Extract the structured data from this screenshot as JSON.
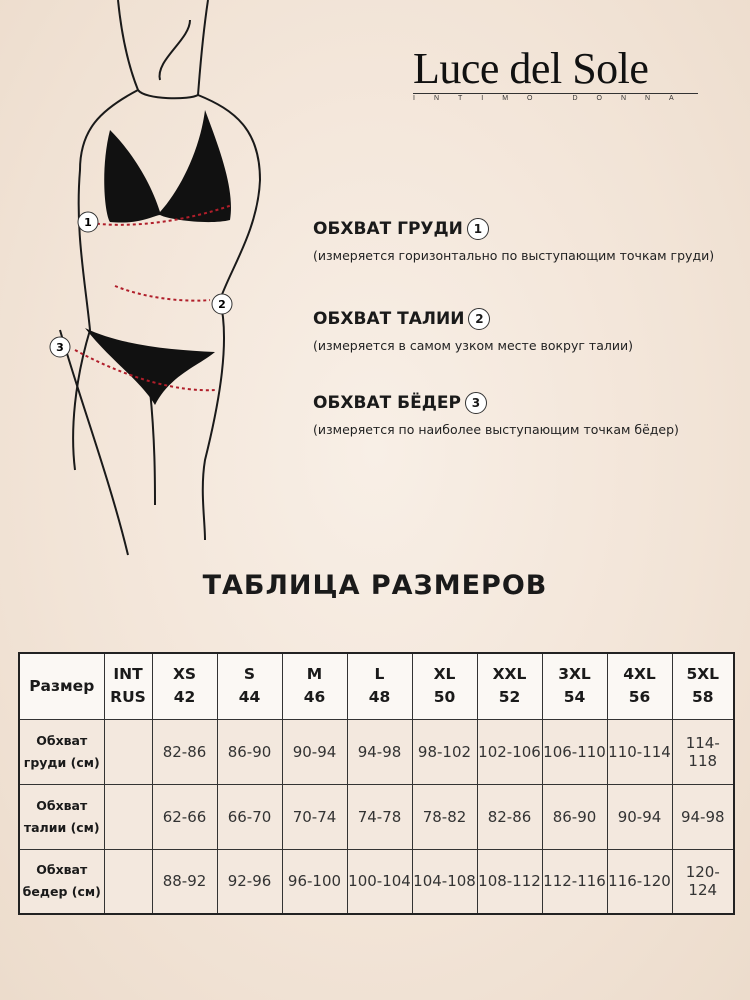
{
  "brand": {
    "name": "Luce del Sole",
    "tagline": "INTIMO DONNA"
  },
  "measurements": [
    {
      "num": "1",
      "title": "ОБХВАТ ГРУДИ",
      "desc": "(измеряется горизонтально по выступающим точкам груди)"
    },
    {
      "num": "2",
      "title": "ОБХВАТ ТАЛИИ",
      "desc": "(измеряется в самом узком месте вокруг талии)"
    },
    {
      "num": "3",
      "title": "ОБХВАТ БЁДЕР",
      "desc": "(измеряется по наиболее выступающим точкам бёдер)"
    }
  ],
  "table": {
    "title": "ТАБЛИЦА РАЗМЕРОВ",
    "corner": "Размер",
    "system": [
      "INT",
      "RUS"
    ],
    "sizes": [
      [
        "XS",
        "42"
      ],
      [
        "S",
        "44"
      ],
      [
        "M",
        "46"
      ],
      [
        "L",
        "48"
      ],
      [
        "XL",
        "50"
      ],
      [
        "XXL",
        "52"
      ],
      [
        "3XL",
        "54"
      ],
      [
        "4XL",
        "56"
      ],
      [
        "5XL",
        "58"
      ]
    ],
    "rows": [
      {
        "label": [
          "Обхват",
          "груди (см)"
        ],
        "values": [
          "82-86",
          "86-90",
          "90-94",
          "94-98",
          "98-102",
          "102-106",
          "106-110",
          "110-114",
          "114-118"
        ]
      },
      {
        "label": [
          "Обхват",
          "талии (см)"
        ],
        "values": [
          "62-66",
          "66-70",
          "70-74",
          "74-78",
          "78-82",
          "82-86",
          "86-90",
          "90-94",
          "94-98"
        ]
      },
      {
        "label": [
          "Обхват",
          "бедер (см)"
        ],
        "values": [
          "88-92",
          "92-96",
          "96-100",
          "100-104",
          "104-108",
          "108-112",
          "112-116",
          "116-120",
          "120-124"
        ]
      }
    ]
  }
}
